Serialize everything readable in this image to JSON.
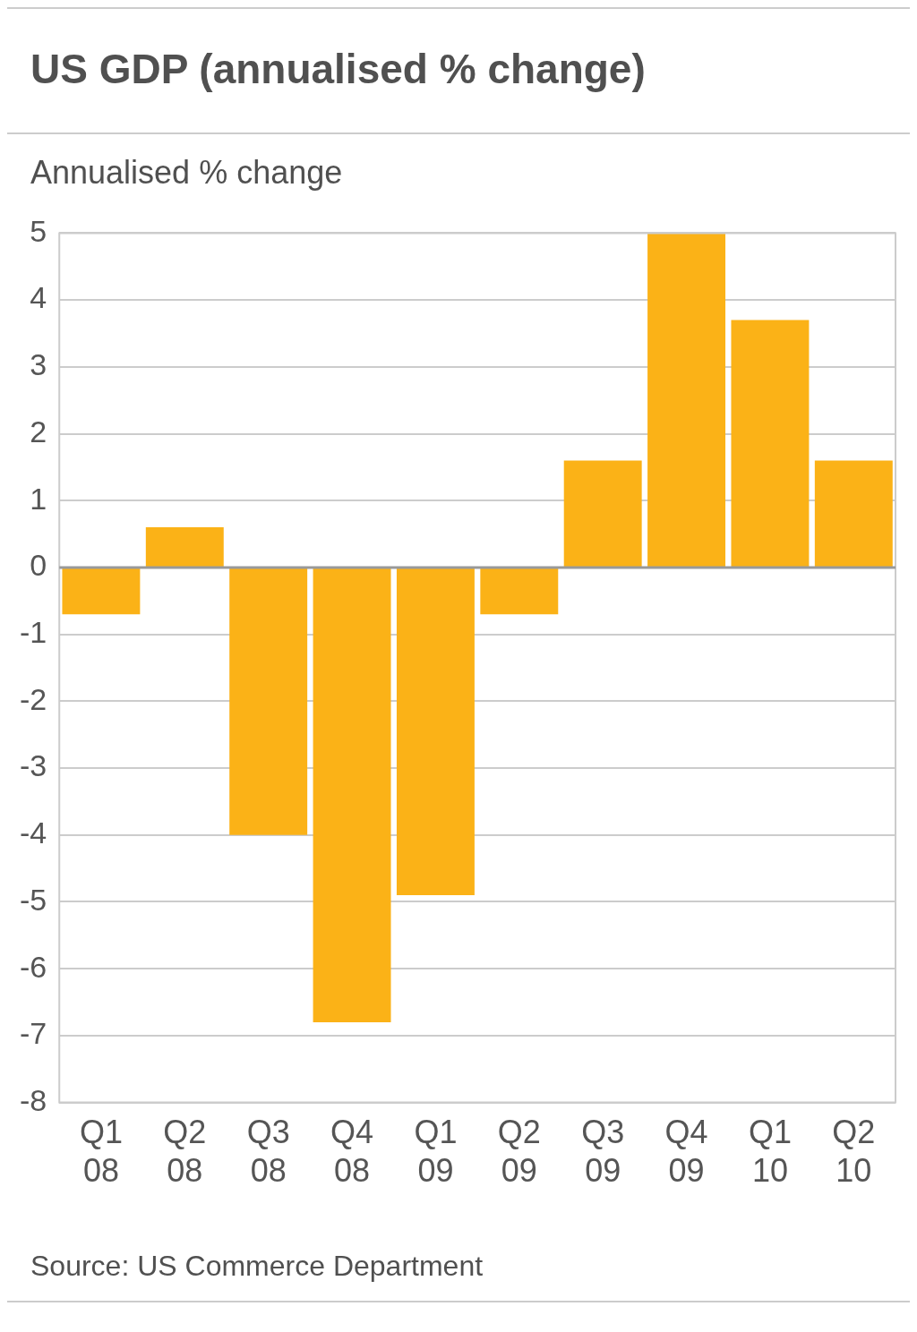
{
  "chart_data": {
    "type": "bar",
    "title": "US GDP (annualised % change)",
    "ylabel": "Annualised % change",
    "categories": [
      "Q1 08",
      "Q2 08",
      "Q3 08",
      "Q4 08",
      "Q1 09",
      "Q2 09",
      "Q3 09",
      "Q4 09",
      "Q1 10",
      "Q2 10"
    ],
    "values": [
      -0.7,
      0.6,
      -4.0,
      -6.8,
      -4.9,
      -0.7,
      1.6,
      5.0,
      3.7,
      1.6
    ],
    "color": "#fbb217",
    "ylim": [
      -8,
      5
    ],
    "yticks": [
      -8,
      -7,
      -6,
      -5,
      -4,
      -3,
      -2,
      -1,
      0,
      1,
      2,
      3,
      4,
      5
    ],
    "grid": "y",
    "annotations": [
      "Source: US Commerce Department"
    ]
  }
}
